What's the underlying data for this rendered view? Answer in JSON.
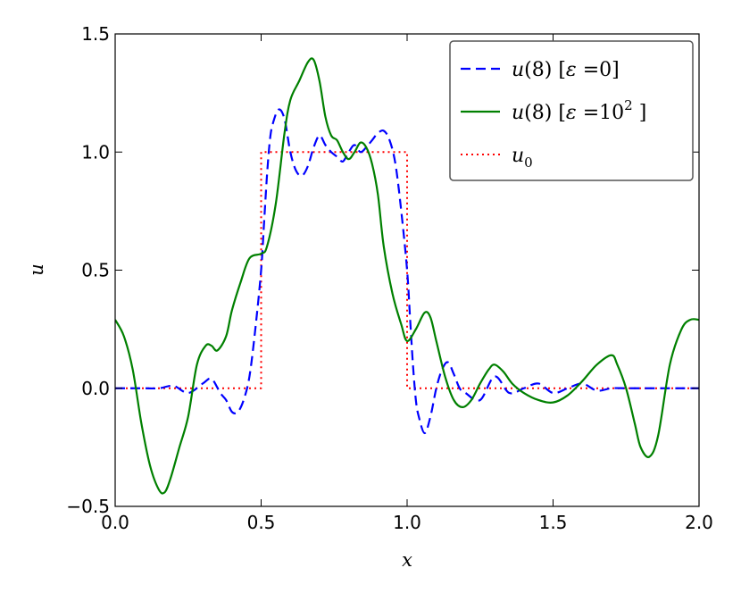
{
  "chart_data": {
    "type": "line",
    "title": "",
    "xlabel": "x",
    "ylabel": "u",
    "xlim": [
      0.0,
      2.0
    ],
    "ylim": [
      -0.5,
      1.5
    ],
    "x_ticks": [
      0.0,
      0.5,
      1.0,
      1.5,
      2.0
    ],
    "x_tick_labels": [
      "0.0",
      "0.5",
      "1.0",
      "1.5",
      "2.0"
    ],
    "y_ticks": [
      -0.5,
      0.0,
      0.5,
      1.0,
      1.5
    ],
    "y_tick_labels": [
      "−0.5",
      "0.0",
      "0.5",
      "1.0",
      "1.5"
    ],
    "grid": false,
    "legend_position": "top-right",
    "series": [
      {
        "name": "u(8) [ε = 0]",
        "legend": {
          "pre": "u",
          "mid": "(8) [",
          "sym": "ε",
          "post": " =0]"
        },
        "color": "#0000ff",
        "style": "dashed",
        "x": [
          0.0,
          0.05,
          0.1,
          0.15,
          0.2,
          0.25,
          0.3,
          0.33,
          0.36,
          0.38,
          0.4,
          0.42,
          0.44,
          0.46,
          0.48,
          0.5,
          0.51,
          0.52,
          0.53,
          0.54,
          0.56,
          0.58,
          0.6,
          0.62,
          0.64,
          0.66,
          0.68,
          0.7,
          0.72,
          0.74,
          0.76,
          0.78,
          0.8,
          0.82,
          0.84,
          0.86,
          0.88,
          0.9,
          0.92,
          0.94,
          0.96,
          0.98,
          1.0,
          1.01,
          1.02,
          1.03,
          1.04,
          1.06,
          1.08,
          1.1,
          1.12,
          1.14,
          1.16,
          1.18,
          1.2,
          1.25,
          1.3,
          1.35,
          1.4,
          1.45,
          1.5,
          1.55,
          1.6,
          1.65,
          1.7,
          1.75,
          1.8,
          1.85,
          1.9,
          1.95,
          2.0
        ],
        "y": [
          0.0,
          0.0,
          0.0,
          0.0,
          0.01,
          -0.02,
          0.02,
          0.04,
          -0.02,
          -0.05,
          -0.1,
          -0.1,
          -0.05,
          0.05,
          0.25,
          0.5,
          0.7,
          0.9,
          1.05,
          1.12,
          1.18,
          1.14,
          1.0,
          0.92,
          0.9,
          0.94,
          1.02,
          1.07,
          1.03,
          1.0,
          0.98,
          0.96,
          1.0,
          1.03,
          1.0,
          1.02,
          1.05,
          1.08,
          1.09,
          1.05,
          0.95,
          0.75,
          0.5,
          0.3,
          0.1,
          -0.05,
          -0.12,
          -0.19,
          -0.12,
          0.0,
          0.08,
          0.11,
          0.06,
          0.0,
          -0.02,
          -0.05,
          0.05,
          -0.02,
          0.0,
          0.02,
          -0.02,
          0.0,
          0.02,
          -0.01,
          0.0,
          0.0,
          0.0,
          0.0,
          0.0,
          0.0,
          0.0
        ]
      },
      {
        "name": "u(8) [ε = 10²]",
        "legend": {
          "pre": "u",
          "mid": "(8) [",
          "sym": "ε",
          "post": " =10",
          "sup": "2",
          "tail": " ]"
        },
        "color": "#008000",
        "style": "solid",
        "x": [
          0.0,
          0.03,
          0.06,
          0.09,
          0.12,
          0.15,
          0.17,
          0.19,
          0.22,
          0.25,
          0.28,
          0.31,
          0.33,
          0.35,
          0.38,
          0.4,
          0.43,
          0.46,
          0.5,
          0.52,
          0.55,
          0.58,
          0.6,
          0.63,
          0.66,
          0.68,
          0.7,
          0.72,
          0.74,
          0.76,
          0.78,
          0.8,
          0.82,
          0.84,
          0.86,
          0.88,
          0.9,
          0.92,
          0.95,
          0.98,
          1.0,
          1.03,
          1.06,
          1.08,
          1.1,
          1.13,
          1.16,
          1.19,
          1.22,
          1.25,
          1.28,
          1.3,
          1.33,
          1.36,
          1.4,
          1.45,
          1.5,
          1.55,
          1.6,
          1.65,
          1.7,
          1.72,
          1.75,
          1.78,
          1.8,
          1.83,
          1.86,
          1.9,
          1.94,
          1.97,
          2.0
        ],
        "y": [
          0.29,
          0.22,
          0.08,
          -0.15,
          -0.33,
          -0.43,
          -0.44,
          -0.38,
          -0.25,
          -0.12,
          0.1,
          0.18,
          0.18,
          0.16,
          0.22,
          0.33,
          0.45,
          0.55,
          0.57,
          0.6,
          0.78,
          1.08,
          1.22,
          1.3,
          1.38,
          1.39,
          1.3,
          1.15,
          1.07,
          1.05,
          1.0,
          0.97,
          1.0,
          1.04,
          1.02,
          0.95,
          0.82,
          0.6,
          0.4,
          0.27,
          0.2,
          0.25,
          0.32,
          0.3,
          0.2,
          0.05,
          -0.05,
          -0.08,
          -0.05,
          0.02,
          0.08,
          0.1,
          0.07,
          0.02,
          -0.02,
          -0.05,
          -0.06,
          -0.03,
          0.03,
          0.1,
          0.14,
          0.1,
          0.0,
          -0.15,
          -0.25,
          -0.29,
          -0.2,
          0.1,
          0.25,
          0.29,
          0.29
        ]
      },
      {
        "name": "u₀",
        "legend": {
          "pre": "u",
          "sub": "0"
        },
        "color": "#ff0000",
        "style": "dotted",
        "x": [
          0.0,
          0.5,
          0.5,
          1.0,
          1.0,
          2.0
        ],
        "y": [
          0.0,
          0.0,
          1.0,
          1.0,
          0.0,
          0.0
        ]
      }
    ]
  }
}
